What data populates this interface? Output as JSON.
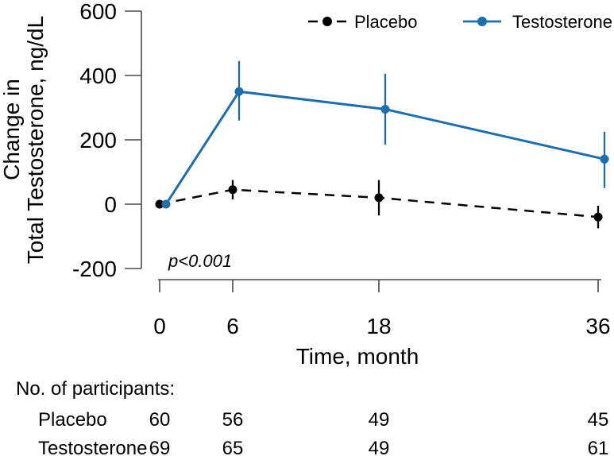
{
  "chart_data": {
    "type": "line",
    "title": "",
    "xlabel": "Time, month",
    "ylabel": "Change in\nTotal Testosterone, ng/dL",
    "ylabel_lines": [
      "Change in",
      "Total Testosterone, ng/dL"
    ],
    "x": [
      0,
      6,
      18,
      36
    ],
    "xtick_labels": [
      "0",
      "6",
      "18",
      "36"
    ],
    "ytick_values": [
      600,
      400,
      200,
      0,
      -200
    ],
    "ytick_labels": [
      "600",
      "400",
      "200",
      "0",
      "-200"
    ],
    "xlim": [
      0,
      36
    ],
    "ylim": [
      -200,
      600
    ],
    "grid": false,
    "legend_position": "top-center",
    "annotation": "p<0.001",
    "series": [
      {
        "name": "Placebo",
        "color": "#000000",
        "line_style": "dashed",
        "marker": "circle",
        "values": [
          0,
          45,
          20,
          -40
        ],
        "err_low": [
          null,
          15,
          -35,
          -75
        ],
        "err_high": [
          null,
          75,
          75,
          -5
        ]
      },
      {
        "name": "Testosterone",
        "color": "#1c6fac",
        "line_style": "solid",
        "marker": "circle",
        "values": [
          0,
          350,
          295,
          140
        ],
        "err_low": [
          null,
          260,
          185,
          50
        ],
        "err_high": [
          null,
          445,
          405,
          225
        ]
      }
    ],
    "participants": {
      "heading": "No. of participants:",
      "rows": [
        {
          "name": "Placebo",
          "color": "#000000",
          "counts": [
            "60",
            "56",
            "49",
            "45"
          ]
        },
        {
          "name": "Testosterone",
          "color": "#1c6fac",
          "counts": [
            "69",
            "65",
            "49",
            "61"
          ]
        }
      ]
    }
  }
}
